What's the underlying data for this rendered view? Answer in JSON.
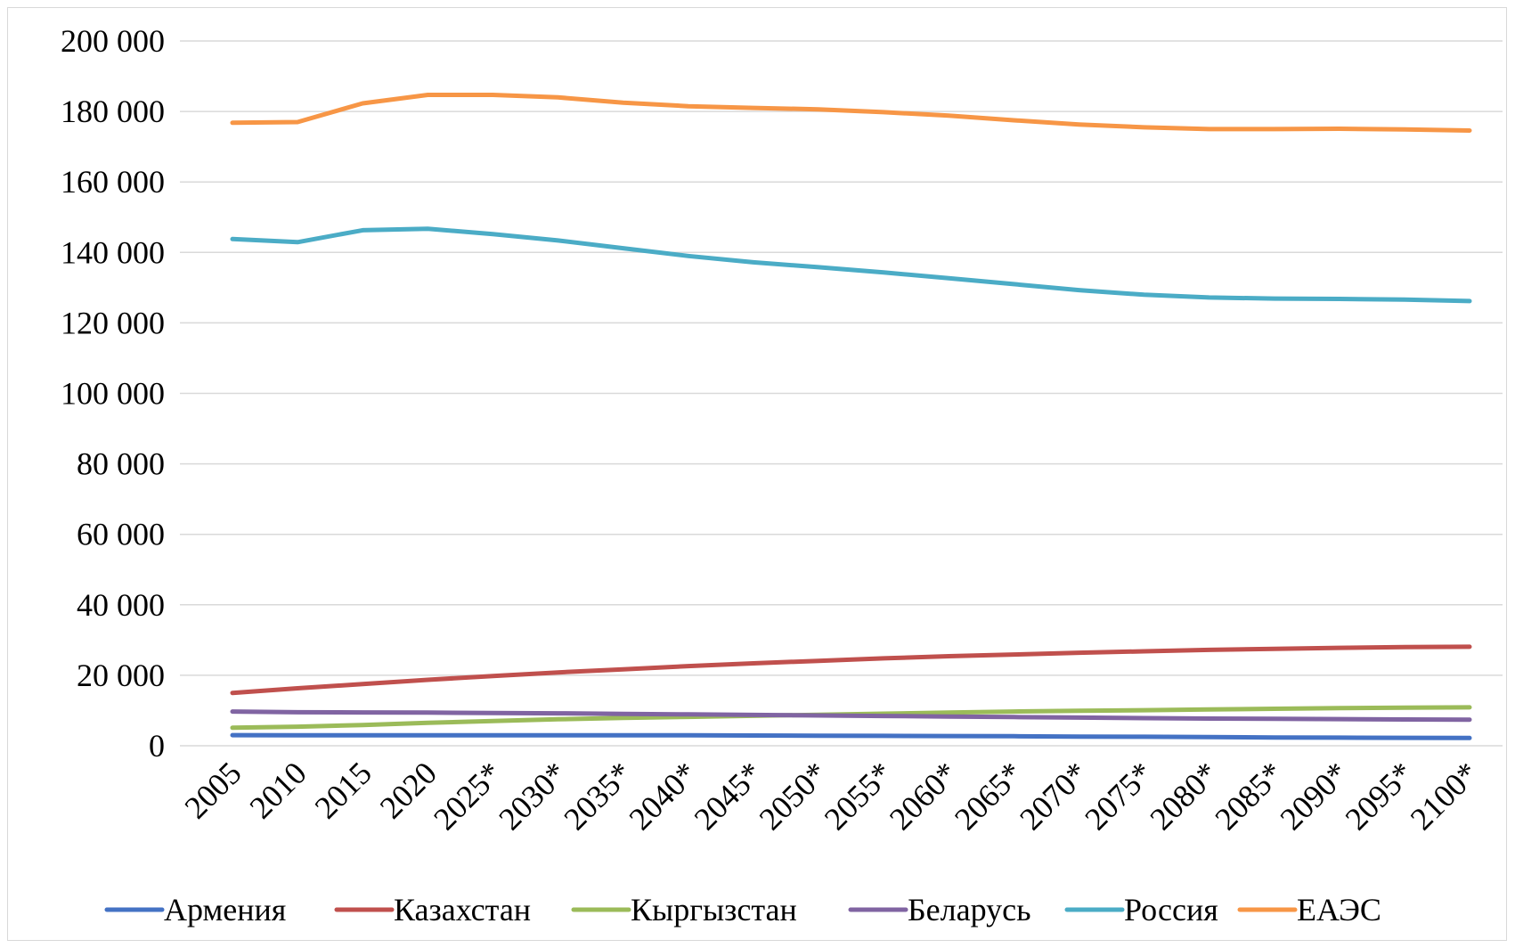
{
  "chart_data": {
    "type": "line",
    "title": "",
    "xlabel": "",
    "ylabel": "",
    "ylim": [
      0,
      200000
    ],
    "y_ticks": [
      "0",
      "20 000",
      "40 000",
      "60 000",
      "80 000",
      "100 000",
      "120 000",
      "140 000",
      "160 000",
      "180 000",
      "200 000"
    ],
    "grid": true,
    "legend_position": "bottom",
    "categories": [
      "2005",
      "2010",
      "2015",
      "2020",
      "2025*",
      "2030*",
      "2035*",
      "2040*",
      "2045*",
      "2050*",
      "2055*",
      "2060*",
      "2065*",
      "2070*",
      "2075*",
      "2080*",
      "2085*",
      "2090*",
      "2095*",
      "2100*"
    ],
    "series": [
      {
        "name": "Армения",
        "color": "#4472C4",
        "values": [
          3000,
          2950,
          2950,
          2950,
          2950,
          2950,
          2950,
          2950,
          2900,
          2850,
          2800,
          2750,
          2700,
          2600,
          2550,
          2450,
          2350,
          2300,
          2250,
          2200
        ]
      },
      {
        "name": "Казахстан",
        "color": "#C0504D",
        "values": [
          15000,
          16300,
          17500,
          18700,
          19800,
          20800,
          21700,
          22600,
          23400,
          24100,
          24800,
          25400,
          25900,
          26400,
          26800,
          27200,
          27500,
          27800,
          28000,
          28100
        ]
      },
      {
        "name": "Кыргызстан",
        "color": "#9BBB59",
        "values": [
          5100,
          5400,
          5900,
          6500,
          7000,
          7500,
          7900,
          8200,
          8500,
          8800,
          9100,
          9400,
          9700,
          9900,
          10100,
          10300,
          10500,
          10700,
          10800,
          10900
        ]
      },
      {
        "name": "Беларусь",
        "color": "#8064A2",
        "values": [
          9700,
          9500,
          9450,
          9400,
          9300,
          9200,
          9050,
          8900,
          8750,
          8600,
          8450,
          8300,
          8150,
          8000,
          7850,
          7700,
          7650,
          7550,
          7450,
          7400
        ]
      },
      {
        "name": "Россия",
        "color": "#4BACC6",
        "values": [
          143800,
          142900,
          146300,
          146700,
          145200,
          143400,
          141200,
          139000,
          137200,
          135800,
          134300,
          132700,
          131000,
          129300,
          128000,
          127200,
          126900,
          126800,
          126600,
          126200
        ]
      },
      {
        "name": "ЕАЭС",
        "color": "#F79646",
        "values": [
          176800,
          177000,
          182300,
          184700,
          184700,
          184000,
          182500,
          181500,
          181000,
          180600,
          179800,
          178800,
          177500,
          176300,
          175500,
          175000,
          175000,
          175100,
          174900,
          174600
        ]
      }
    ]
  }
}
